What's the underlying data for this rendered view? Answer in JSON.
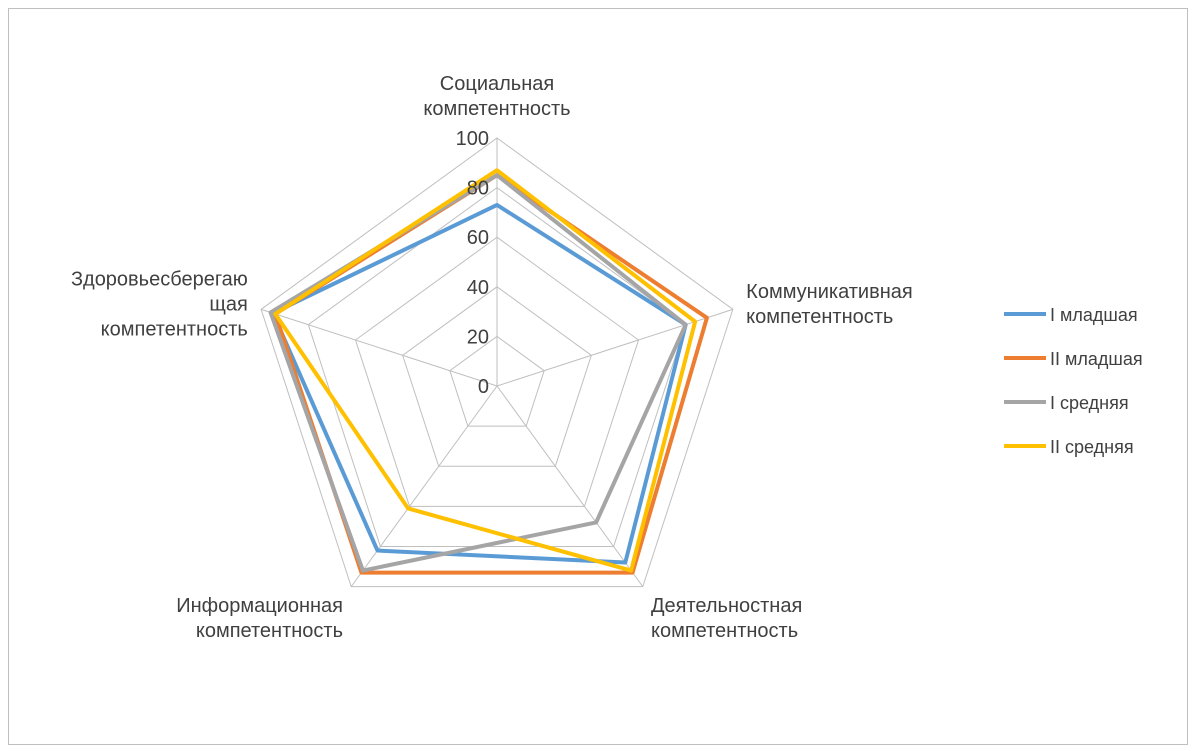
{
  "chart_data": {
    "type": "radar",
    "title": "",
    "categories": [
      [
        "Социальная",
        "компетентность"
      ],
      [
        "Коммуникативная",
        "компетентность"
      ],
      [
        "Деятельностная",
        "компетентность"
      ],
      [
        "Информационная",
        "компетентность"
      ],
      [
        "Здоровьесберегаю",
        "щая",
        "компетентность"
      ]
    ],
    "ylim": [
      0,
      100
    ],
    "ticks": [
      "0",
      "20",
      "40",
      "60",
      "80",
      "100"
    ],
    "grid": true,
    "legend_position": "right",
    "series": [
      {
        "name": "I младшая",
        "color": "#5B9BD5",
        "values": [
          73,
          80,
          88,
          82,
          95
        ]
      },
      {
        "name": "II младшая",
        "color": "#ED7D31",
        "values": [
          85,
          89,
          93,
          93,
          94
        ]
      },
      {
        "name": "I средняя",
        "color": "#A5A5A5",
        "values": [
          85,
          80,
          68,
          92,
          96
        ]
      },
      {
        "name": "II средняя",
        "color": "#FFC000",
        "values": [
          87,
          84,
          92,
          61,
          94
        ]
      }
    ]
  }
}
